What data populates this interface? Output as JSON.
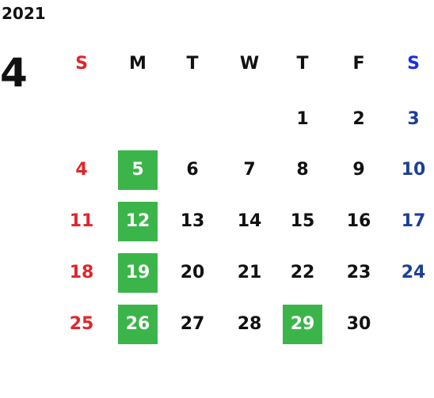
{
  "calendar": {
    "year": "2021",
    "month": "4",
    "weekdays": [
      "S",
      "M",
      "T",
      "W",
      "T",
      "F",
      "S"
    ],
    "weeks": [
      [
        "",
        "",
        "",
        "",
        "1",
        "2",
        "3"
      ],
      [
        "4",
        "5",
        "6",
        "7",
        "8",
        "9",
        "10"
      ],
      [
        "11",
        "12",
        "13",
        "14",
        "15",
        "16",
        "17"
      ],
      [
        "18",
        "19",
        "20",
        "21",
        "22",
        "23",
        "24"
      ],
      [
        "25",
        "26",
        "27",
        "28",
        "29",
        "30",
        ""
      ]
    ],
    "highlighted_days": [
      "5",
      "12",
      "19",
      "26",
      "29"
    ],
    "colors": {
      "sunday": "#e0252a",
      "saturday": "#1d3f94",
      "saturday_header": "#1a2ce8",
      "weekday": "#111111",
      "highlight_bg": "#3bb54a",
      "highlight_text": "#ffffff"
    }
  }
}
